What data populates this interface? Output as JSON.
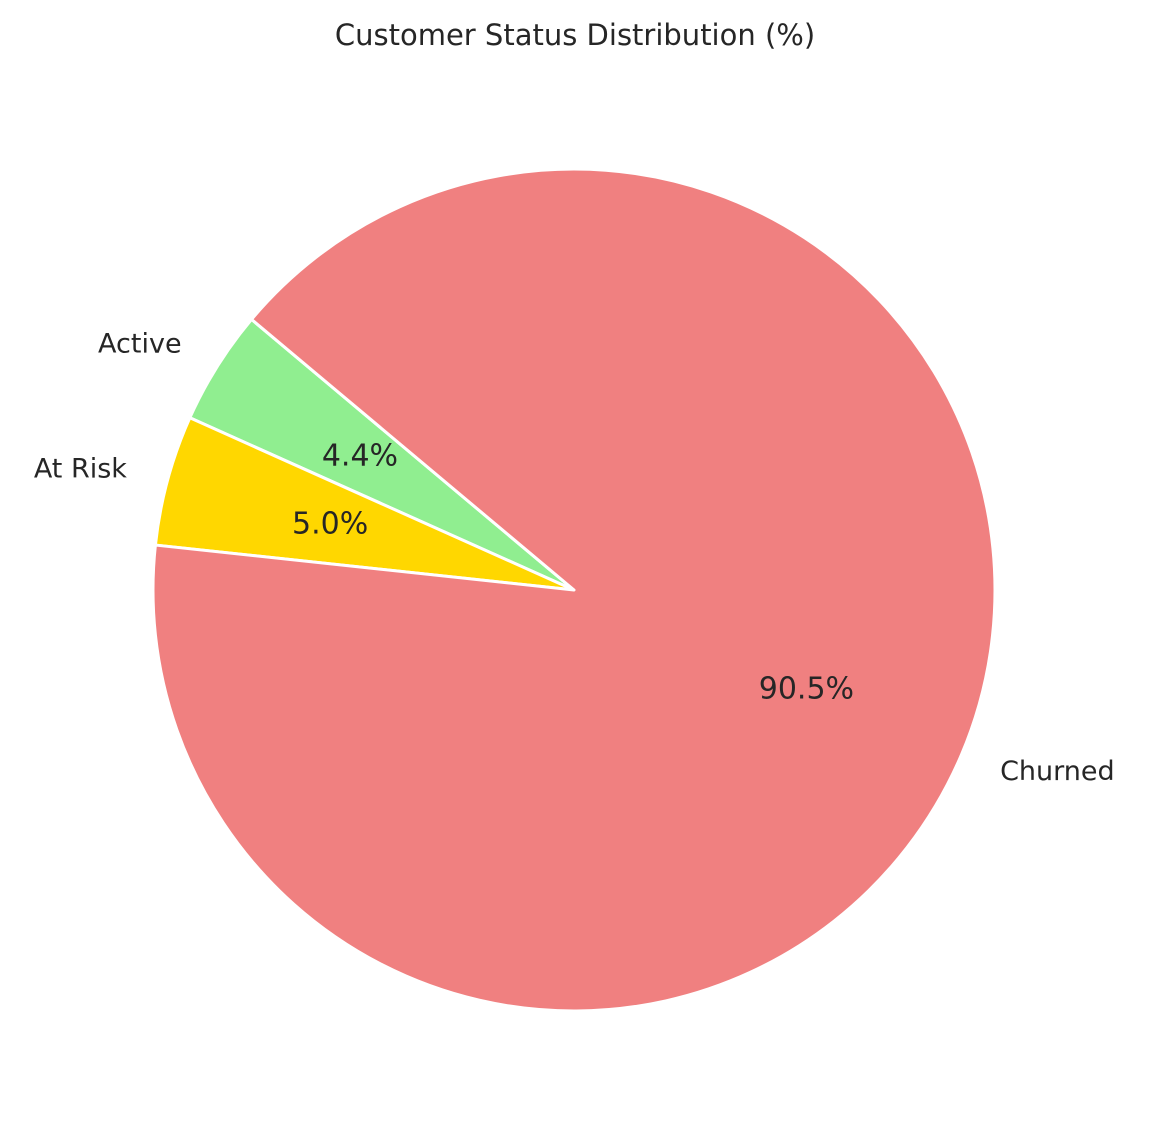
{
  "chart_data": {
    "type": "pie",
    "title": "Customer Status Distribution (%)",
    "start_angle_deg": 140,
    "direction": "counterclockwise",
    "slices": [
      {
        "label": "Active",
        "value": 4.4,
        "pct_label": "4.4%",
        "color": "#90EE90"
      },
      {
        "label": "At Risk",
        "value": 5.0,
        "pct_label": "5.0%",
        "color": "#FFD700"
      },
      {
        "label": "Churned",
        "value": 90.5,
        "pct_label": "90.5%",
        "color": "#F08080"
      }
    ]
  }
}
